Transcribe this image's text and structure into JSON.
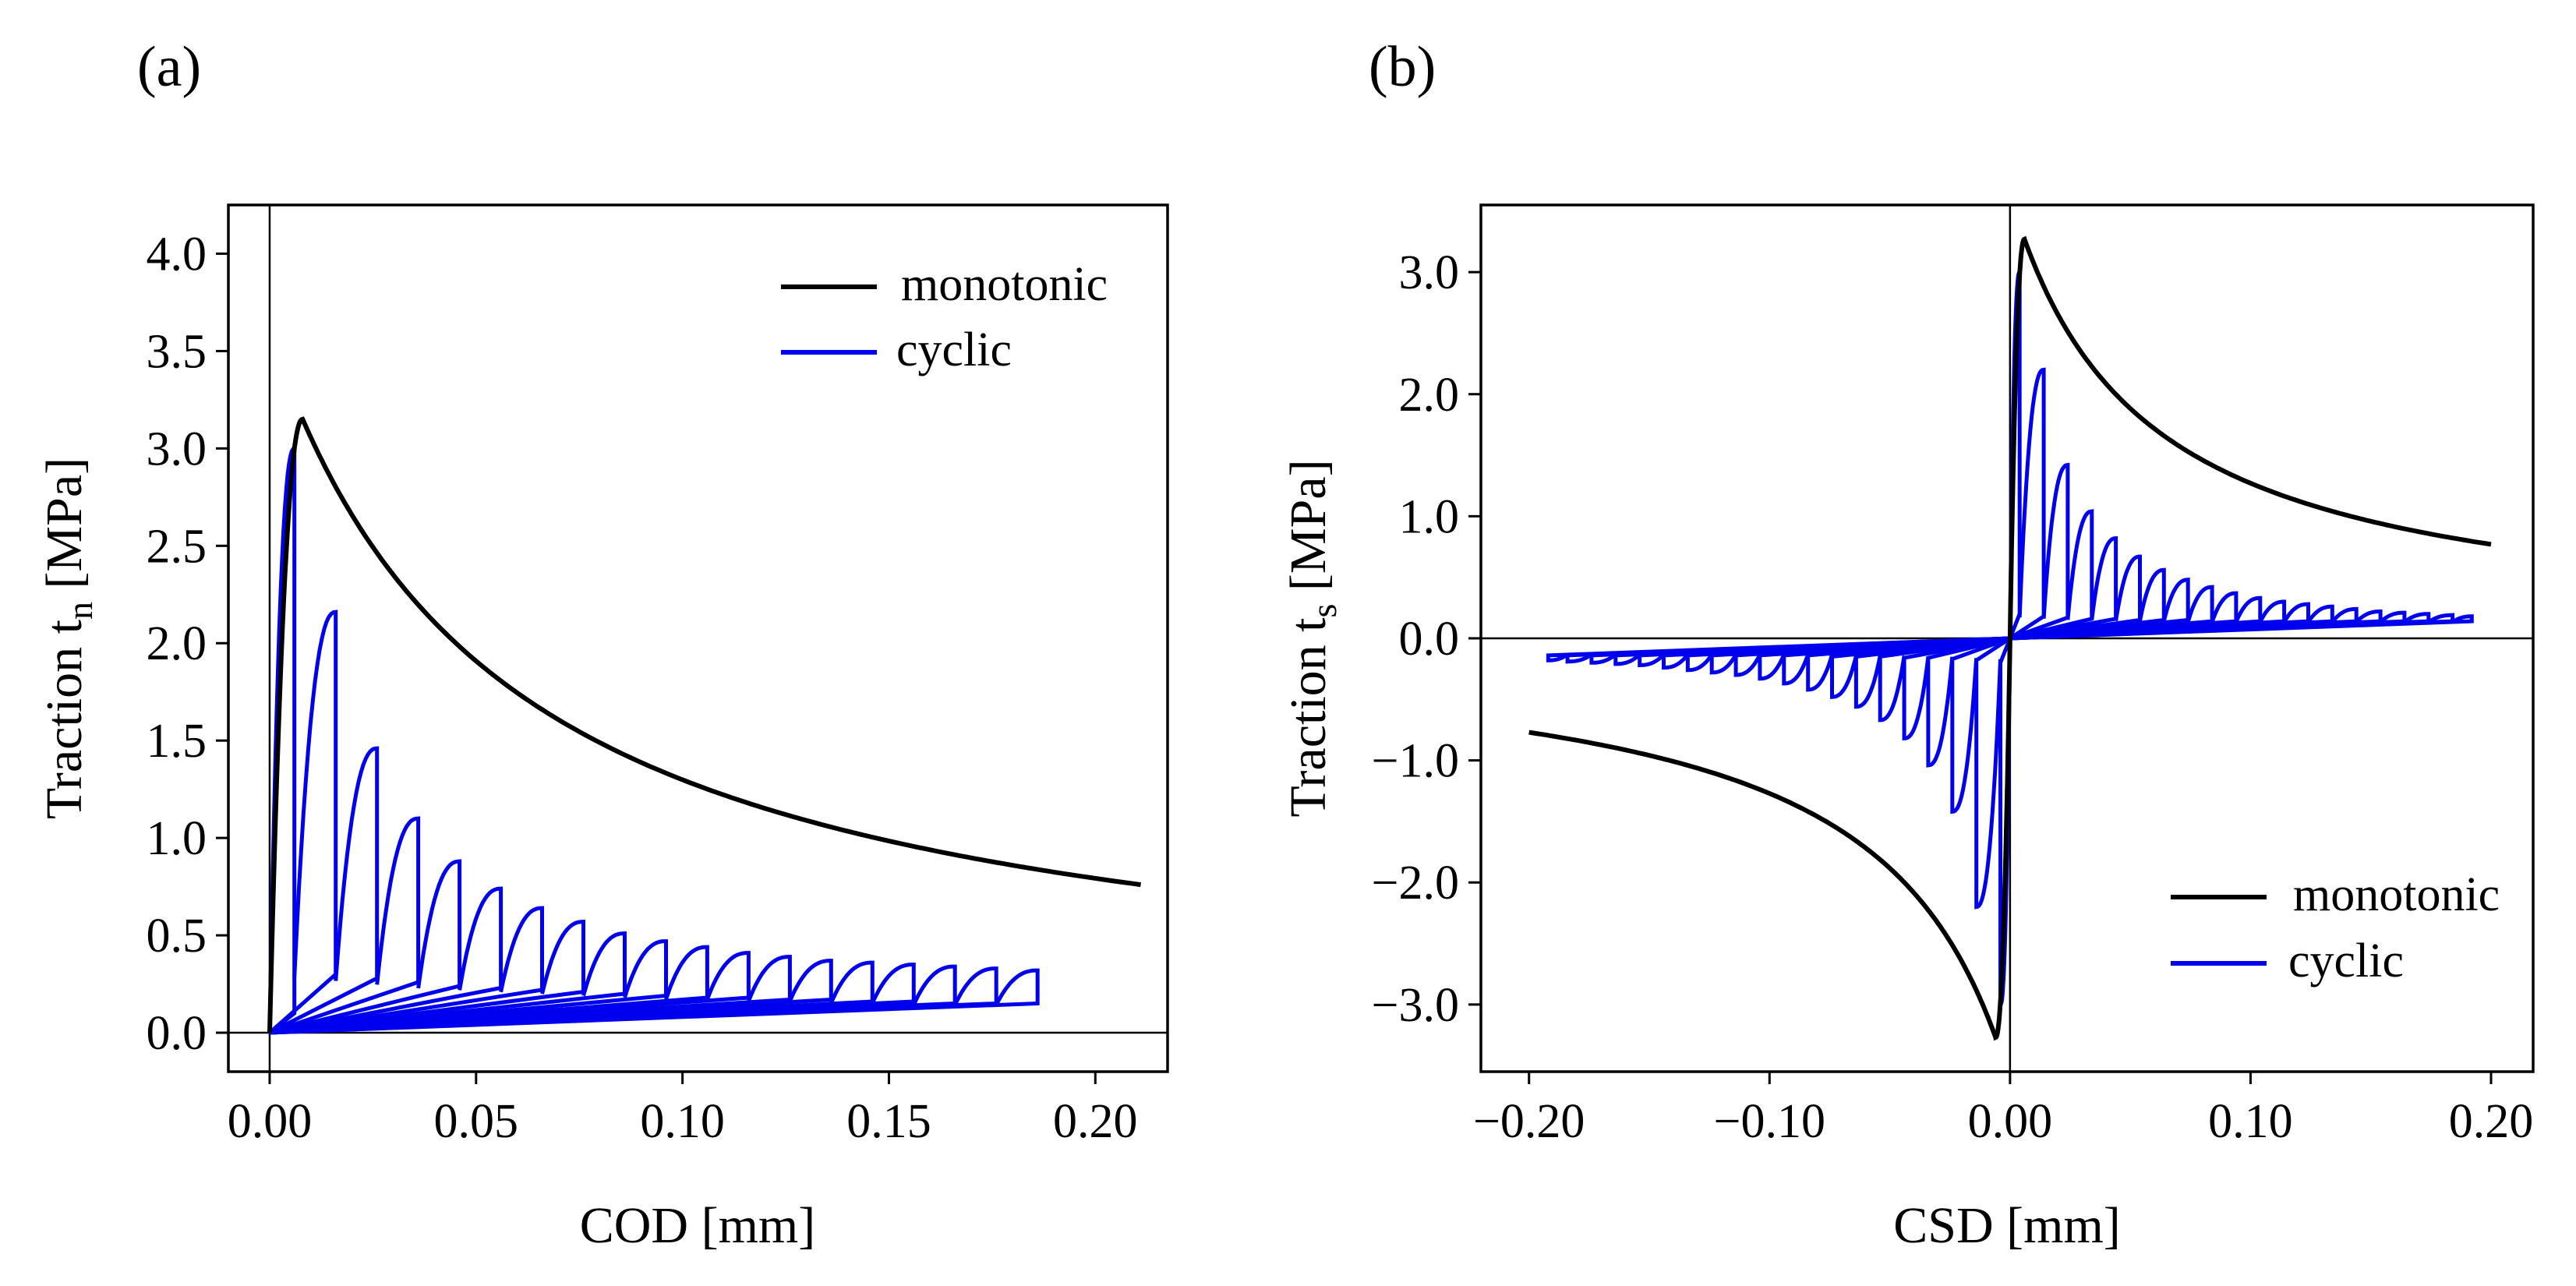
{
  "chart_data": [
    {
      "panel_label": "(a)",
      "type": "line",
      "xlabel": "COD [mm]",
      "ylabel": "Traction t",
      "ylabel_sub": "n",
      "ylabel_unit": " [MPa]",
      "xlim": [
        -0.01,
        0.2175
      ],
      "ylim": [
        -0.2,
        4.25
      ],
      "xticks": [
        0.0,
        0.05,
        0.1,
        0.15,
        0.2
      ],
      "xtick_labels": [
        "0.00",
        "0.05",
        "0.10",
        "0.15",
        "0.20"
      ],
      "yticks": [
        0.0,
        0.5,
        1.0,
        1.5,
        2.0,
        2.5,
        3.0,
        3.5,
        4.0
      ],
      "ytick_labels": [
        "0.0",
        "0.5",
        "1.0",
        "1.5",
        "2.0",
        "2.5",
        "3.0",
        "3.5",
        "4.0"
      ],
      "zero_lines": {
        "x": 0,
        "y": 0
      },
      "legend": {
        "position": "upper-right",
        "entries": [
          {
            "label": "monotonic",
            "color": "#000000"
          },
          {
            "label": "cyclic",
            "color": "#0000ee"
          }
        ]
      },
      "series": [
        {
          "name": "monotonic",
          "color": "#000000",
          "model": "softening",
          "peak_x": 0.008,
          "peak_y": 3.15,
          "x_end": 0.211,
          "end_y": 0.76
        },
        {
          "name": "cyclic",
          "color": "#0000ee",
          "model": "cycles",
          "mirror": false,
          "cycles": [
            [
              0.0,
              0.006,
              3.0,
              0.1
            ],
            [
              0.006,
              0.016,
              2.16,
              0.3
            ],
            [
              0.016,
              0.026,
              1.46,
              0.28
            ],
            [
              0.026,
              0.036,
              1.1,
              0.26
            ],
            [
              0.036,
              0.046,
              0.88,
              0.24
            ],
            [
              0.046,
              0.056,
              0.74,
              0.23
            ],
            [
              0.056,
              0.066,
              0.64,
              0.22
            ],
            [
              0.066,
              0.076,
              0.57,
              0.21
            ],
            [
              0.076,
              0.086,
              0.51,
              0.2
            ],
            [
              0.086,
              0.096,
              0.47,
              0.19
            ],
            [
              0.096,
              0.106,
              0.44,
              0.18
            ],
            [
              0.106,
              0.116,
              0.41,
              0.18
            ],
            [
              0.116,
              0.126,
              0.39,
              0.17
            ],
            [
              0.126,
              0.136,
              0.37,
              0.17
            ],
            [
              0.136,
              0.146,
              0.36,
              0.16
            ],
            [
              0.146,
              0.156,
              0.35,
              0.16
            ],
            [
              0.156,
              0.166,
              0.34,
              0.15
            ],
            [
              0.166,
              0.176,
              0.33,
              0.15
            ],
            [
              0.176,
              0.186,
              0.32,
              0.15
            ]
          ]
        }
      ]
    },
    {
      "panel_label": "(b)",
      "type": "line",
      "xlabel": "CSD [mm]",
      "ylabel": "Traction t",
      "ylabel_sub": "s",
      "ylabel_unit": " [MPa]",
      "xlim": [
        -0.22,
        0.2175
      ],
      "ylim": [
        -3.55,
        3.55
      ],
      "xticks": [
        -0.2,
        -0.1,
        0.0,
        0.1,
        0.2
      ],
      "xtick_labels": [
        "−0.20",
        "−0.10",
        "0.00",
        "0.10",
        "0.20"
      ],
      "yticks": [
        -3.0,
        -2.0,
        -1.0,
        0.0,
        1.0,
        2.0,
        3.0
      ],
      "ytick_labels": [
        "−3.0",
        "−2.0",
        "−1.0",
        "0.0",
        "1.0",
        "2.0",
        "3.0"
      ],
      "zero_lines": {
        "x": 0,
        "y": 0
      },
      "legend": {
        "position": "lower-right",
        "entries": [
          {
            "label": "monotonic",
            "color": "#000000"
          },
          {
            "label": "cyclic",
            "color": "#0000ee"
          }
        ]
      },
      "series": [
        {
          "name": "monotonic",
          "color": "#000000",
          "model": "softening",
          "mirror": true,
          "peak_x": 0.006,
          "peak_y": 3.27,
          "x_end": 0.2,
          "end_y": 0.77
        },
        {
          "name": "cyclic",
          "color": "#0000ee",
          "model": "cycles",
          "mirror": true,
          "cycles": [
            [
              0.0,
              0.004,
              3.0,
              0.2
            ],
            [
              0.004,
              0.014,
              2.2,
              0.18
            ],
            [
              0.014,
              0.024,
              1.42,
              0.17
            ],
            [
              0.024,
              0.034,
              1.04,
              0.16
            ],
            [
              0.034,
              0.044,
              0.82,
              0.16
            ],
            [
              0.044,
              0.054,
              0.67,
              0.15
            ],
            [
              0.054,
              0.064,
              0.56,
              0.15
            ],
            [
              0.064,
              0.074,
              0.48,
              0.15
            ],
            [
              0.074,
              0.084,
              0.42,
              0.14
            ],
            [
              0.084,
              0.094,
              0.37,
              0.14
            ],
            [
              0.094,
              0.104,
              0.33,
              0.14
            ],
            [
              0.104,
              0.114,
              0.3,
              0.14
            ],
            [
              0.114,
              0.124,
              0.28,
              0.14
            ],
            [
              0.124,
              0.134,
              0.26,
              0.14
            ],
            [
              0.134,
              0.144,
              0.24,
              0.14
            ],
            [
              0.144,
              0.154,
              0.22,
              0.14
            ],
            [
              0.154,
              0.164,
              0.21,
              0.14
            ],
            [
              0.164,
              0.174,
              0.2,
              0.14
            ],
            [
              0.174,
              0.184,
              0.19,
              0.14
            ],
            [
              0.184,
              0.192,
              0.18,
              0.14
            ]
          ]
        }
      ]
    }
  ]
}
